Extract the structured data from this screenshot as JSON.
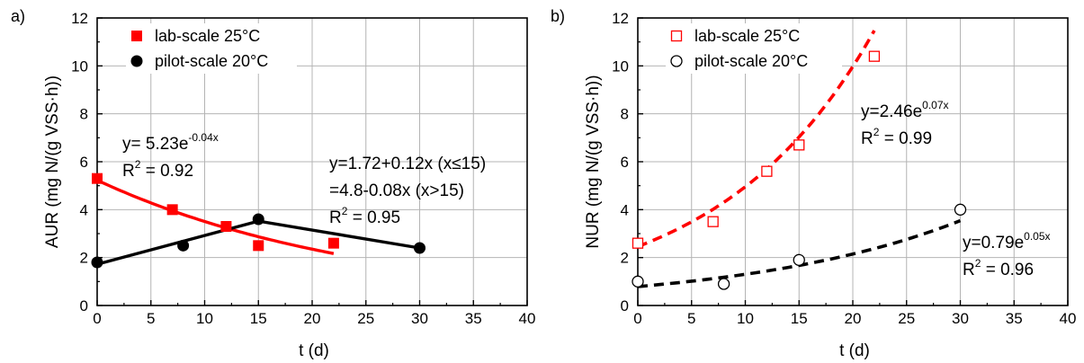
{
  "chart_data": [
    {
      "panel_label": "a)",
      "type": "scatter",
      "xlabel": "t (d)",
      "ylabel": "AUR (mg N/(g VSS·h))",
      "xlim": [
        0,
        40
      ],
      "ylim": [
        0,
        12
      ],
      "x_ticks": [
        "0",
        "5",
        "10",
        "15",
        "20",
        "25",
        "30",
        "35",
        "40"
      ],
      "y_ticks": [
        "0",
        "2",
        "4",
        "6",
        "8",
        "10",
        "12"
      ],
      "grid": true,
      "legend_position": "top-left",
      "series": [
        {
          "name": "lab-scale 25°C",
          "marker": "square",
          "filled": true,
          "color": "#ff0000",
          "x": [
            0,
            7,
            12,
            15,
            22
          ],
          "y": [
            5.3,
            4.0,
            3.3,
            2.5,
            2.6
          ],
          "fit": {
            "kind": "exponential",
            "a": 5.23,
            "b": -0.04,
            "x_range": [
              0,
              22
            ],
            "style": "solid"
          }
        },
        {
          "name": "pilot-scale 20°C",
          "marker": "circle",
          "filled": true,
          "color": "#000000",
          "x": [
            0,
            8,
            15,
            30
          ],
          "y": [
            1.8,
            2.5,
            3.6,
            2.4
          ],
          "fit": {
            "kind": "piecewise",
            "points": [
              [
                0,
                1.72
              ],
              [
                15,
                3.52
              ],
              [
                30,
                2.4
              ]
            ],
            "style": "solid"
          }
        }
      ],
      "annotations": [
        {
          "lines": [
            {
              "main": "y= 5.23e",
              "sup": "-0.04x"
            },
            {
              "main": "R",
              "sup": "2",
              "tail": " = 0.92"
            }
          ]
        },
        {
          "lines": [
            {
              "main": "y=1.72+0.12x (x≤15)"
            },
            {
              "main": " =4.8-0.08x    (x>15)"
            },
            {
              "main": "R",
              "sup": "2",
              "tail": " = 0.95"
            }
          ]
        }
      ]
    },
    {
      "panel_label": "b)",
      "type": "scatter",
      "xlabel": "t (d)",
      "ylabel": "NUR (mg N/(g VSS·h))",
      "xlim": [
        0,
        40
      ],
      "ylim": [
        0,
        12
      ],
      "x_ticks": [
        "0",
        "5",
        "10",
        "15",
        "20",
        "25",
        "30",
        "35",
        "40"
      ],
      "y_ticks": [
        "0",
        "2",
        "4",
        "6",
        "8",
        "10",
        "12"
      ],
      "grid": true,
      "legend_position": "top-left",
      "series": [
        {
          "name": "lab-scale 25°C",
          "marker": "square",
          "filled": false,
          "color": "#ff0000",
          "x": [
            0,
            7,
            12,
            15,
            22
          ],
          "y": [
            2.6,
            3.5,
            5.6,
            6.7,
            10.4
          ],
          "fit": {
            "kind": "exponential",
            "a": 2.46,
            "b": 0.07,
            "x_range": [
              0,
              22
            ],
            "style": "dashed"
          }
        },
        {
          "name": "pilot-scale 20°C",
          "marker": "circle",
          "filled": false,
          "color": "#000000",
          "x": [
            0,
            8,
            15,
            30
          ],
          "y": [
            1.0,
            0.9,
            1.9,
            4.0
          ],
          "fit": {
            "kind": "exponential",
            "a": 0.79,
            "b": 0.05,
            "x_range": [
              0,
              30
            ],
            "style": "dashed"
          }
        }
      ],
      "annotations": [
        {
          "lines": [
            {
              "main": "y=2.46e",
              "sup": "0.07x"
            },
            {
              "main": "R",
              "sup": "2",
              "tail": " = 0.99"
            }
          ]
        },
        {
          "lines": [
            {
              "main": "y=0.79e",
              "sup": "0.05x"
            },
            {
              "main": "R",
              "sup": "2",
              "tail": " = 0.96"
            }
          ]
        }
      ]
    }
  ]
}
